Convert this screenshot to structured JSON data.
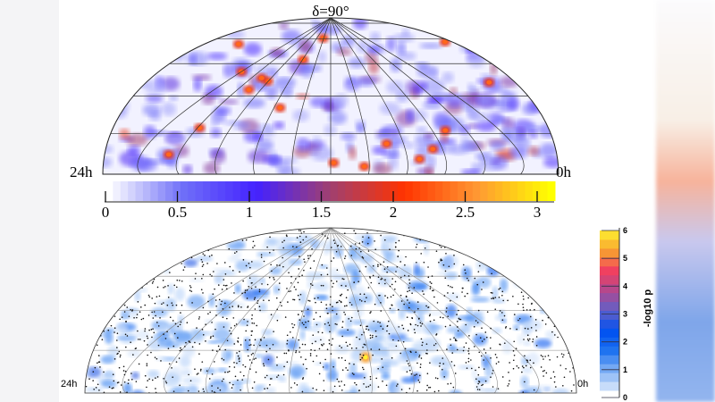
{
  "top_map": {
    "pole_label": "δ=90°",
    "left_label": "24h",
    "right_label": "0h",
    "colorbar": {
      "ticks": [
        "0",
        "0.5",
        "1",
        "1.5",
        "2",
        "2.5",
        "3"
      ],
      "range": [
        0,
        3
      ],
      "colors": [
        "#ffffff",
        "#6f6ff8",
        "#4422ff",
        "#a04070",
        "#ff3300",
        "#ff9933",
        "#ffff00"
      ]
    }
  },
  "bottom_map": {
    "left_label": "24h",
    "right_label": "0h",
    "colorbar": {
      "label": "-log10 p",
      "ticks": [
        "0",
        "1",
        "2",
        "3",
        "4",
        "5",
        "6"
      ],
      "range": [
        0,
        6
      ],
      "colors": [
        "#dbe8fb",
        "#7fb0f5",
        "#1f73f0",
        "#0050f0",
        "#6060c8",
        "#b04890",
        "#f04060",
        "#f8a030",
        "#fff030"
      ]
    }
  },
  "chart_data": [
    {
      "type": "heatmap",
      "projection": "hammer-aitoff half-sky",
      "colorbar_range": [
        0,
        3
      ],
      "colorbar_ticks": [
        0,
        0.5,
        1,
        1.5,
        2,
        2.5,
        3
      ],
      "labels": [
        "δ=90°",
        "24h",
        "0h"
      ]
    },
    {
      "type": "heatmap",
      "projection": "hammer-aitoff half-sky with event points",
      "colorbar_label": "-log10 p",
      "colorbar_range": [
        0,
        6
      ],
      "colorbar_ticks": [
        0,
        1,
        2,
        3,
        4,
        5,
        6
      ],
      "labels": [
        "24h",
        "0h"
      ]
    }
  ]
}
